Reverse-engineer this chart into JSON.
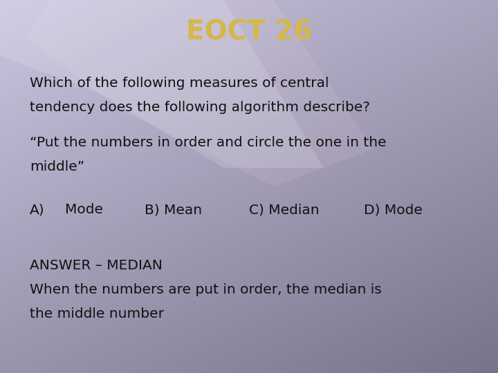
{
  "title": "EOCT 26",
  "title_color": "#d4b84a",
  "title_fontsize": 28,
  "title_weight": "bold",
  "text_color": "#111111",
  "body_fontsize": 14.5,
  "line1": "Which of the following measures of central",
  "line2": "tendency does the following algorithm describe?",
  "line3": "“Put the numbers in order and circle the one in the",
  "line4": "middle”",
  "choices_a": "A)",
  "choices_b": "Mode",
  "choices_c": "B) Mean",
  "choices_d": "C) Median",
  "choices_e": "D) Mode",
  "answer_line1": "ANSWER – MEDIAN",
  "answer_line2": "When the numbers are put in order, the median is",
  "answer_line3": "the middle number",
  "font_family": "DejaVu Sans",
  "bg_light": "#ccc8e0",
  "bg_dark": "#807890"
}
